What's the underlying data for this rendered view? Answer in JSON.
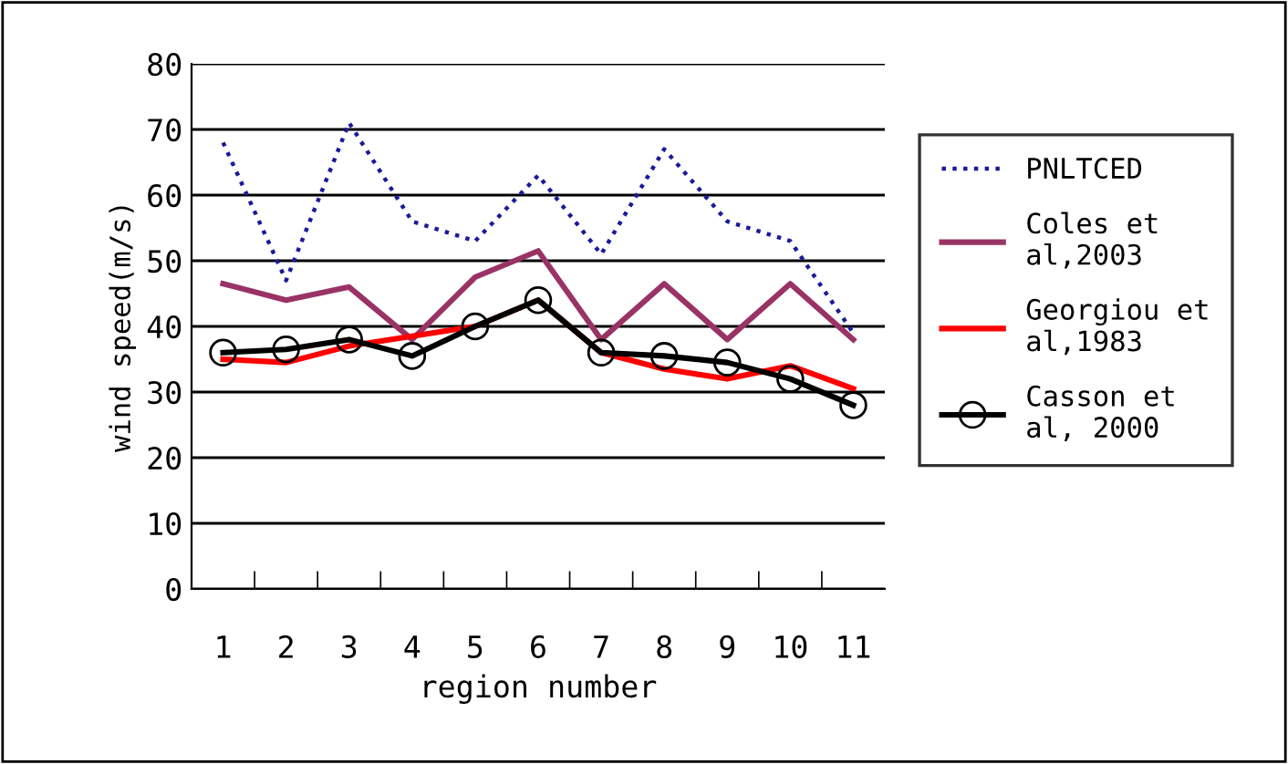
{
  "chart_data": {
    "type": "line",
    "xlabel": "region number",
    "ylabel": "wind speed(m/s)",
    "categories": [
      "1",
      "2",
      "3",
      "4",
      "5",
      "6",
      "7",
      "8",
      "9",
      "10",
      "11"
    ],
    "series": [
      {
        "name": "PNLTCED",
        "color": "#1a1a99",
        "line_style": "dotted",
        "marker": "none",
        "values": [
          68,
          47,
          71,
          56,
          53,
          63,
          51,
          67,
          56,
          53,
          39
        ]
      },
      {
        "name": "Coles et al,2003",
        "color": "#993366",
        "line_style": "solid",
        "marker": "none",
        "values": [
          46.5,
          44,
          46,
          38,
          47.5,
          51.5,
          38,
          46.5,
          38,
          46.5,
          38
        ]
      },
      {
        "name": "Georgiou et al,1983",
        "color": "#ff0000",
        "line_style": "solid",
        "marker": "none",
        "values": [
          35,
          34.5,
          37,
          38.5,
          40,
          44,
          36,
          33.5,
          32,
          34,
          30.5
        ]
      },
      {
        "name": "Casson et al, 2000",
        "color": "#000000",
        "line_style": "solid",
        "marker": "circle",
        "values": [
          36,
          36.5,
          38,
          35.5,
          40,
          44,
          36,
          35.5,
          34.5,
          32,
          28
        ]
      }
    ],
    "ylim": [
      0,
      80
    ],
    "yticks": [
      0,
      10,
      20,
      30,
      40,
      50,
      60,
      70,
      80
    ],
    "grid": "y",
    "legend": "right"
  }
}
